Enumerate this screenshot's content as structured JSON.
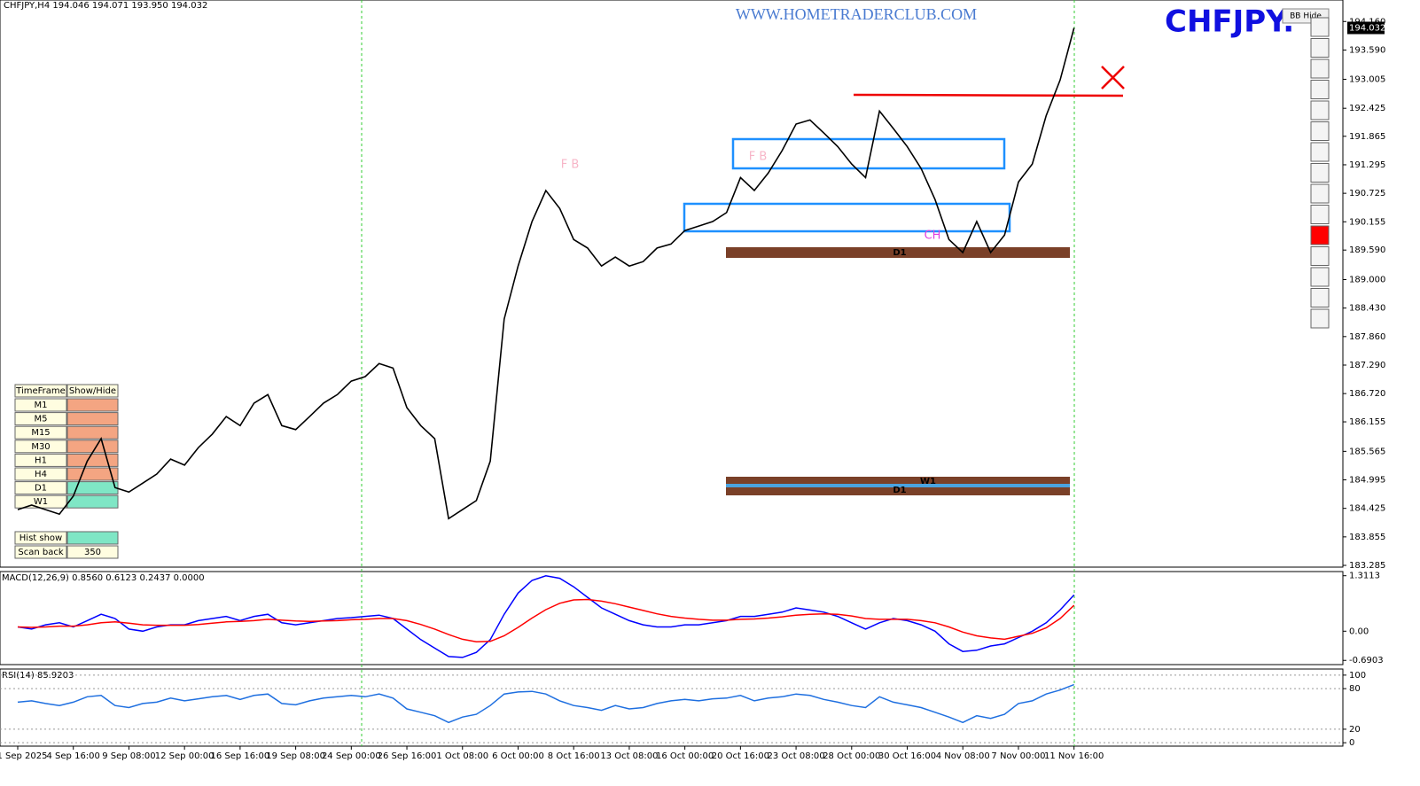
{
  "chart_data": [
    {
      "type": "line",
      "title": "CHFJPY,H4 194.046 194.071 193.950 194.032",
      "color": "#000000",
      "categories": [
        "1 Sep 2025",
        null,
        null,
        null,
        "4 Sep 16:00",
        null,
        null,
        null,
        "9 Sep 08:00",
        null,
        null,
        null,
        "12 Sep 00:00",
        null,
        null,
        null,
        "16 Sep 16:00",
        null,
        null,
        null,
        "19 Sep 08:00",
        null,
        null,
        null,
        "24 Sep 00:00",
        null,
        null,
        null,
        "26 Sep 16:00",
        null,
        null,
        null,
        "1 Oct 08:00",
        null,
        null,
        null,
        "6 Oct 00:00",
        null,
        null,
        null,
        "8 Oct 16:00",
        null,
        null,
        null,
        "13 Oct 08:00",
        null,
        null,
        null,
        "16 Oct 00:00",
        null,
        null,
        null,
        "20 Oct 16:00",
        null,
        null,
        null,
        "23 Oct 08:00",
        null,
        null,
        null,
        "28 Oct 00:00",
        null,
        null,
        null,
        "30 Oct 16:00",
        null,
        null,
        null,
        "4 Nov 08:00",
        null,
        null,
        null,
        "7 Nov 00:00",
        null,
        null,
        null,
        "11 Nov 16:00"
      ],
      "values": [
        184.4,
        184.49,
        184.4,
        184.31,
        184.67,
        185.37,
        185.82,
        184.84,
        184.75,
        184.93,
        185.11,
        185.41,
        185.29,
        185.64,
        185.91,
        186.26,
        186.08,
        186.53,
        186.7,
        186.08,
        186.0,
        186.26,
        186.53,
        186.7,
        186.97,
        187.06,
        187.32,
        187.23,
        186.44,
        186.08,
        185.82,
        184.22,
        184.4,
        184.58,
        185.37,
        188.21,
        189.27,
        190.16,
        190.78,
        190.42,
        189.8,
        189.63,
        189.27,
        189.45,
        189.27,
        189.36,
        189.63,
        189.71,
        189.98,
        190.07,
        190.16,
        190.34,
        191.04,
        190.78,
        191.13,
        191.58,
        192.11,
        192.19,
        191.93,
        191.66,
        191.31,
        191.04,
        192.37,
        192.02,
        191.66,
        191.22,
        190.6,
        189.8,
        189.54,
        190.16,
        189.54,
        189.89,
        190.95,
        191.31,
        192.28,
        192.99,
        194.032
      ],
      "last_price": 194.032,
      "ylim": [
        183.25,
        194.59
      ],
      "yticks": [
        {
          "value": 194.16,
          "label": "194.160"
        },
        {
          "value": 193.59,
          "label": "193.590"
        },
        {
          "value": 193.005,
          "label": "193.005"
        },
        {
          "value": 192.425,
          "label": "192.425"
        },
        {
          "value": 191.865,
          "label": "191.865"
        },
        {
          "value": 191.295,
          "label": "191.295"
        },
        {
          "value": 190.725,
          "label": "190.725"
        },
        {
          "value": 190.155,
          "label": "190.155"
        },
        {
          "value": 189.59,
          "label": "189.590"
        },
        {
          "value": 189.0,
          "label": "189.000"
        },
        {
          "value": 188.43,
          "label": "188.430"
        },
        {
          "value": 187.86,
          "label": "187.860"
        },
        {
          "value": 187.29,
          "label": "187.290"
        },
        {
          "value": 186.72,
          "label": "186.720"
        },
        {
          "value": 186.155,
          "label": "186.155"
        },
        {
          "value": 185.565,
          "label": "185.565"
        },
        {
          "value": 184.995,
          "label": "184.995"
        },
        {
          "value": 184.425,
          "label": "184.425"
        },
        {
          "value": 183.855,
          "label": "183.855"
        },
        {
          "value": 183.285,
          "label": "183.285"
        }
      ]
    },
    {
      "type": "line",
      "title": "MACD(12,26,9) 0.8560 0.6123 0.2437 0.0000",
      "series": [
        {
          "color": "#0000ff",
          "values": [
            0.1,
            0.05,
            0.15,
            0.2,
            0.1,
            0.25,
            0.4,
            0.3,
            0.05,
            0.0,
            0.1,
            0.15,
            0.15,
            0.25,
            0.3,
            0.35,
            0.25,
            0.35,
            0.4,
            0.2,
            0.15,
            0.2,
            0.25,
            0.3,
            0.32,
            0.35,
            0.38,
            0.3,
            0.05,
            -0.2,
            -0.4,
            -0.6,
            -0.62,
            -0.5,
            -0.2,
            0.4,
            0.9,
            1.2,
            1.31,
            1.25,
            1.05,
            0.8,
            0.55,
            0.4,
            0.25,
            0.15,
            0.1,
            0.1,
            0.15,
            0.15,
            0.2,
            0.25,
            0.35,
            0.35,
            0.4,
            0.45,
            0.55,
            0.5,
            0.45,
            0.35,
            0.2,
            0.05,
            0.2,
            0.3,
            0.25,
            0.15,
            0.0,
            -0.3,
            -0.48,
            -0.45,
            -0.35,
            -0.3,
            -0.15,
            0.0,
            0.2,
            0.5,
            0.856
          ]
        },
        {
          "color": "#ff0000",
          "values": [
            0.1,
            0.09,
            0.1,
            0.12,
            0.12,
            0.15,
            0.2,
            0.22,
            0.19,
            0.15,
            0.14,
            0.14,
            0.14,
            0.16,
            0.19,
            0.22,
            0.23,
            0.25,
            0.28,
            0.26,
            0.24,
            0.23,
            0.24,
            0.25,
            0.27,
            0.28,
            0.3,
            0.3,
            0.25,
            0.16,
            0.05,
            -0.08,
            -0.19,
            -0.25,
            -0.24,
            -0.11,
            0.09,
            0.31,
            0.51,
            0.66,
            0.74,
            0.75,
            0.71,
            0.65,
            0.57,
            0.49,
            0.41,
            0.35,
            0.31,
            0.28,
            0.26,
            0.26,
            0.28,
            0.29,
            0.31,
            0.34,
            0.38,
            0.4,
            0.41,
            0.4,
            0.36,
            0.3,
            0.28,
            0.28,
            0.28,
            0.25,
            0.2,
            0.1,
            -0.02,
            -0.11,
            -0.16,
            -0.19,
            -0.12,
            -0.05,
            0.08,
            0.3,
            0.6123
          ]
        }
      ],
      "ylim": [
        -0.79,
        1.41
      ],
      "yticks": [
        1.3113,
        {
          "value": 0,
          "label": "0.00"
        },
        -0.6903
      ]
    },
    {
      "type": "line",
      "title": "RSI(14) 85.9203",
      "color": "#1e6fe0",
      "values": [
        60,
        62,
        58,
        55,
        60,
        68,
        70,
        55,
        52,
        58,
        60,
        66,
        62,
        65,
        68,
        70,
        64,
        70,
        72,
        58,
        56,
        62,
        66,
        68,
        70,
        68,
        72,
        66,
        50,
        45,
        40,
        30,
        38,
        42,
        55,
        72,
        75,
        76,
        72,
        62,
        55,
        52,
        48,
        55,
        50,
        52,
        58,
        62,
        64,
        62,
        65,
        66,
        70,
        62,
        66,
        68,
        72,
        70,
        64,
        60,
        55,
        52,
        68,
        60,
        56,
        52,
        45,
        38,
        30,
        40,
        36,
        42,
        58,
        62,
        72,
        78,
        85.9203
      ],
      "ylim": [
        -5,
        109
      ],
      "yticks": [
        100,
        80,
        20,
        0
      ]
    }
  ],
  "overlay": {
    "site": "WWW.HOMETRADERCLUB.COM",
    "symbol": "CHFJPY.",
    "bb_button": "BB Hide",
    "zones": [
      "D1",
      "W1",
      "D1"
    ],
    "marks": [
      "F B",
      "F B",
      "CH"
    ],
    "panel": {
      "header": [
        "TimeFrame",
        "Show/Hide"
      ],
      "rows": [
        {
          "tf": "M1",
          "color": "#f4a582"
        },
        {
          "tf": "M5",
          "color": "#f4a582"
        },
        {
          "tf": "M15",
          "color": "#f4a582"
        },
        {
          "tf": "M30",
          "color": "#f4a582"
        },
        {
          "tf": "H1",
          "color": "#f4a582"
        },
        {
          "tf": "H4",
          "color": "#f4a582"
        },
        {
          "tf": "D1",
          "color": "#7fe6c5"
        },
        {
          "tf": "W1",
          "color": "#7fe6c5"
        }
      ],
      "hist": "Hist show",
      "scan": "Scan back",
      "scan_value": "350"
    }
  }
}
